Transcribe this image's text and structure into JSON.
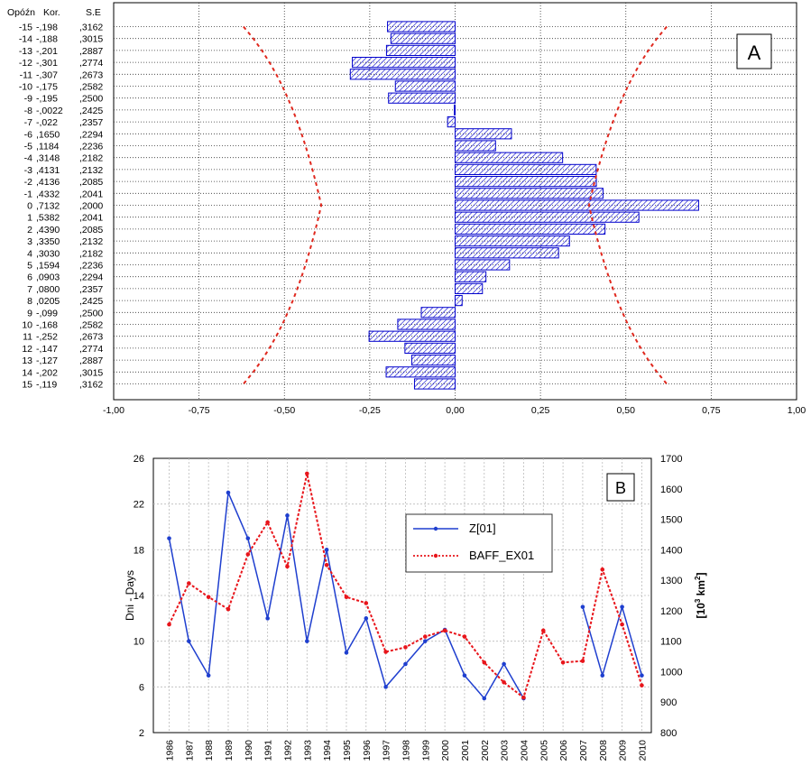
{
  "chart_data": [
    {
      "type": "bar",
      "panel_label": "A",
      "orientation": "horizontal",
      "table_headers": {
        "lag": "Opóźn",
        "corr": "Kor.",
        "se": "S.E"
      },
      "lags": [
        -15,
        -14,
        -13,
        -12,
        -11,
        -10,
        -9,
        -8,
        -7,
        -6,
        -5,
        -4,
        -3,
        -2,
        -1,
        0,
        1,
        2,
        3,
        4,
        5,
        6,
        7,
        8,
        9,
        10,
        11,
        12,
        13,
        14,
        15
      ],
      "lag_labels": [
        "-15",
        "-14",
        "-13",
        "-12",
        "-11",
        "-10",
        "-9",
        "-8",
        "-7",
        "-6",
        "-5",
        "-4",
        "-3",
        "-2",
        "-1",
        "0",
        "1",
        "2",
        "3",
        "4",
        "5",
        "6",
        "7",
        "8",
        "9",
        "10",
        "11",
        "12",
        "13",
        "14",
        "15"
      ],
      "corr_labels": [
        "-,198",
        "-,188",
        "-,201",
        "-,301",
        "-,307",
        "-,175",
        "-,195",
        "-,0022",
        "-,022",
        ",1650",
        ",1184",
        ",3148",
        ",4131",
        ",4136",
        ",4332",
        ",7132",
        ",5382",
        ",4390",
        ",3350",
        ",3030",
        ",1594",
        ",0903",
        ",0800",
        ",0205",
        "-,099",
        "-,168",
        "-,252",
        "-,147",
        "-,127",
        "-,202",
        "-,119"
      ],
      "se_labels": [
        ",3162",
        ",3015",
        ",2887",
        ",2774",
        ",2673",
        ",2582",
        ",2500",
        ",2425",
        ",2357",
        ",2294",
        ",2236",
        ",2182",
        ",2132",
        ",2085",
        ",2041",
        ",2000",
        ",2041",
        ",2085",
        ",2132",
        ",2182",
        ",2236",
        ",2294",
        ",2357",
        ",2425",
        ",2500",
        ",2582",
        ",2673",
        ",2774",
        ",2887",
        ",3015",
        ",3162"
      ],
      "values": [
        -0.198,
        -0.188,
        -0.201,
        -0.301,
        -0.307,
        -0.175,
        -0.195,
        -0.0022,
        -0.022,
        0.165,
        0.1184,
        0.3148,
        0.4131,
        0.4136,
        0.4332,
        0.7132,
        0.5382,
        0.439,
        0.335,
        0.303,
        0.1594,
        0.0903,
        0.08,
        0.0205,
        -0.099,
        -0.168,
        -0.252,
        -0.147,
        -0.127,
        -0.202,
        -0.119
      ],
      "se": [
        0.3162,
        0.3015,
        0.2887,
        0.2774,
        0.2673,
        0.2582,
        0.25,
        0.2425,
        0.2357,
        0.2294,
        0.2236,
        0.2182,
        0.2132,
        0.2085,
        0.2041,
        0.2,
        0.2041,
        0.2085,
        0.2132,
        0.2182,
        0.2236,
        0.2294,
        0.2357,
        0.2425,
        0.25,
        0.2582,
        0.2673,
        0.2774,
        0.2887,
        0.3015,
        0.3162
      ],
      "confidence_multiplier": 1.96,
      "xlim": [
        -1,
        1
      ],
      "xticks": [
        -1,
        -0.75,
        -0.5,
        -0.25,
        0,
        0.25,
        0.5,
        0.75,
        1
      ],
      "xtick_labels": [
        "-1,00",
        "-0,75",
        "-0,50",
        "-0,25",
        "0,00",
        "0,25",
        "0,50",
        "0,75",
        "1,00"
      ],
      "grid": true,
      "colors": {
        "bar": "#0000cc",
        "confidence": "#e0281e"
      }
    },
    {
      "type": "line",
      "panel_label": "B",
      "x": [
        1986,
        1987,
        1988,
        1989,
        1990,
        1991,
        1992,
        1993,
        1994,
        1995,
        1996,
        1997,
        1998,
        1999,
        2000,
        2001,
        2002,
        2003,
        2004,
        2005,
        2006,
        2007,
        2008,
        2009,
        2010
      ],
      "x_labels": [
        "1986",
        "1987",
        "1988",
        "1989",
        "1990",
        "1991",
        "1992",
        "1993",
        "1994",
        "1995",
        "1996",
        "1997",
        "1998",
        "1999",
        "2000",
        "2001",
        "2002",
        "2003",
        "2004",
        "2005",
        "2006",
        "2007",
        "2008",
        "2009",
        "2010"
      ],
      "series": [
        {
          "name": "Z[01]",
          "axis": "left",
          "color": "#1f3fcf",
          "style": "solid",
          "values": [
            19,
            10,
            7,
            23,
            19,
            12,
            21,
            10,
            18,
            9,
            12,
            6,
            8,
            10,
            11,
            7,
            5,
            8,
            5,
            null,
            null,
            13,
            7,
            13,
            7
          ]
        },
        {
          "name": "BAFF_EX01",
          "axis": "right",
          "color": "#e8151b",
          "style": "dotted",
          "values": [
            1155,
            1290,
            1245,
            1205,
            1385,
            1490,
            1345,
            1650,
            1350,
            1245,
            1225,
            1065,
            1080,
            1115,
            1135,
            1115,
            1030,
            965,
            915,
            1135,
            1030,
            1035,
            1335,
            1155,
            955
          ]
        }
      ],
      "ylabel": "Dni - Days",
      "ylim": [
        2,
        26
      ],
      "yticks": [
        2,
        6,
        10,
        14,
        18,
        22,
        26
      ],
      "y2label": "[10³ km²]",
      "y2label_base": "[10",
      "y2label_exp1": "3",
      "y2label_mid": " km",
      "y2label_exp2": "2",
      "y2label_end": "]",
      "y2lim": [
        800,
        1700
      ],
      "y2ticks": [
        800,
        900,
        1000,
        1100,
        1200,
        1300,
        1400,
        1500,
        1600,
        1700
      ],
      "grid": true,
      "legend_position": "top-center"
    }
  ]
}
